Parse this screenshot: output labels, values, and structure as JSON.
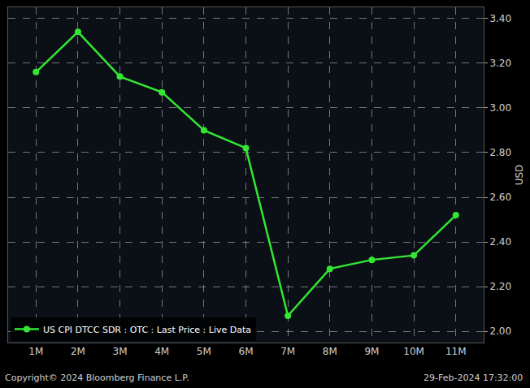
{
  "chart_data": {
    "type": "line",
    "categories": [
      "1M",
      "2M",
      "3M",
      "4M",
      "5M",
      "6M",
      "7M",
      "8M",
      "9M",
      "10M",
      "11M"
    ],
    "series": [
      {
        "name": "US CPI DTCC SDR : OTC : Last Price : Live Data",
        "color": "#33e633",
        "values": [
          3.16,
          3.34,
          3.14,
          3.07,
          2.9,
          2.82,
          2.07,
          2.28,
          2.32,
          2.34,
          2.52
        ]
      }
    ],
    "y_label": "USD",
    "ylim": [
      1.95,
      3.45
    ],
    "yticks": [
      {
        "value": 2.0,
        "label": "2.00"
      },
      {
        "value": 2.2,
        "label": "2.20"
      },
      {
        "value": 2.4,
        "label": "2.40"
      },
      {
        "value": 2.6,
        "label": "2.60"
      },
      {
        "value": 2.8,
        "label": "2.80"
      },
      {
        "value": 3.0,
        "label": "3.00"
      },
      {
        "value": 3.2,
        "label": "3.20"
      },
      {
        "value": 3.4,
        "label": "3.40"
      }
    ],
    "annotations": [
      "Copyright© 2024 Bloomberg Finance L.P.",
      "29-Feb-2024 17:32:00"
    ],
    "grid": true,
    "legend": "bottom left",
    "marker": "circle",
    "line_style": "solid"
  }
}
